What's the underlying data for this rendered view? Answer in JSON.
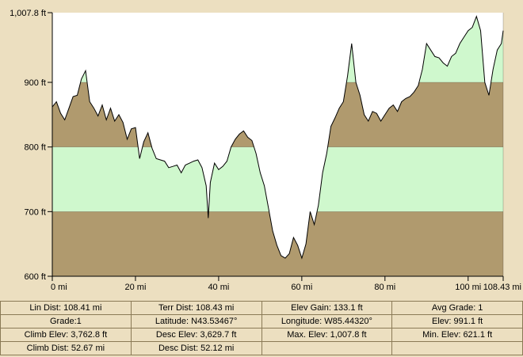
{
  "chart_data": {
    "type": "area",
    "title": "",
    "xlabel": "",
    "ylabel": "",
    "x_ticks": [
      {
        "value": 0,
        "label": "0 mi"
      },
      {
        "value": 20,
        "label": "20 mi"
      },
      {
        "value": 40,
        "label": "40 mi"
      },
      {
        "value": 60,
        "label": "60 mi"
      },
      {
        "value": 80,
        "label": "80 mi"
      },
      {
        "value": 100,
        "label": "100 mi"
      },
      {
        "value": 108.43,
        "label": "108.43 mi"
      }
    ],
    "y_ticks": [
      {
        "value": 600,
        "label": "600 ft"
      },
      {
        "value": 700,
        "label": "700 ft"
      },
      {
        "value": 800,
        "label": "800 ft"
      },
      {
        "value": 900,
        "label": "900 ft"
      },
      {
        "value": 1007.8,
        "label": "1,007.8 ft"
      }
    ],
    "xlim": [
      0,
      108.43
    ],
    "ylim": [
      600,
      1007.8
    ],
    "bands": [
      {
        "from": 600,
        "to": 700,
        "color": "#b09a6e"
      },
      {
        "from": 700,
        "to": 800,
        "color": "#cff8cd"
      },
      {
        "from": 800,
        "to": 900,
        "color": "#b09a6e"
      },
      {
        "from": 900,
        "to": 1007.8,
        "color": "#cff8cd"
      }
    ],
    "sky_color": "#ffffff",
    "line_color": "#000000",
    "series": [
      {
        "x": [
          0,
          1,
          2,
          3,
          4,
          5,
          6,
          7,
          8,
          9,
          10,
          11,
          12,
          13,
          14,
          15,
          16,
          17,
          18,
          19,
          20,
          21,
          22,
          23,
          24,
          25,
          26,
          27,
          28,
          29,
          30,
          31,
          32,
          33,
          34,
          35,
          36,
          37,
          37.5,
          38,
          39,
          40,
          41,
          42,
          43,
          44,
          45,
          46,
          47,
          48,
          49,
          50,
          51,
          52,
          53,
          54,
          55,
          56,
          57,
          58,
          59,
          60,
          61,
          62,
          63,
          64,
          65,
          66,
          67,
          68,
          69,
          70,
          71,
          72,
          73,
          74,
          75,
          76,
          77,
          78,
          79,
          80,
          81,
          82,
          83,
          84,
          85,
          86,
          87,
          88,
          89,
          90,
          91,
          92,
          93,
          94,
          95,
          96,
          97,
          98,
          99,
          100,
          101,
          102,
          103,
          104,
          105,
          106,
          107,
          108,
          108.43
        ],
        "values": [
          862,
          870,
          852,
          842,
          860,
          878,
          880,
          905,
          918,
          870,
          860,
          848,
          865,
          842,
          860,
          840,
          850,
          838,
          812,
          828,
          830,
          782,
          808,
          822,
          798,
          782,
          780,
          778,
          768,
          770,
          772,
          760,
          772,
          775,
          778,
          780,
          768,
          740,
          690,
          745,
          775,
          765,
          770,
          778,
          800,
          812,
          820,
          825,
          815,
          810,
          790,
          760,
          740,
          705,
          670,
          648,
          632,
          628,
          635,
          660,
          648,
          628,
          650,
          700,
          680,
          710,
          760,
          790,
          832,
          845,
          860,
          870,
          910,
          960,
          900,
          880,
          850,
          840,
          855,
          852,
          840,
          850,
          860,
          865,
          855,
          870,
          875,
          878,
          885,
          895,
          920,
          960,
          950,
          940,
          938,
          930,
          925,
          940,
          945,
          960,
          970,
          980,
          985,
          1002,
          980,
          900,
          880,
          920,
          950,
          960,
          980
        ]
      }
    ]
  },
  "stats": {
    "rows": [
      [
        "Lin Dist: 108.41 mi",
        "Terr Dist: 108.43 mi",
        "Elev Gain: 133.1 ft",
        "Avg Grade: 1"
      ],
      [
        "Grade:1",
        "Latitude: N43.53467°",
        "Longitude: W85.44320°",
        "Elev: 991.1 ft"
      ],
      [
        "Climb Elev: 3,762.8 ft",
        "Desc Elev: 3,629.7 ft",
        "Max. Elev: 1,007.8 ft",
        "Min. Elev: 621.1 ft"
      ],
      [
        "Climb Dist: 52.67 mi",
        "Desc Dist: 52.12 mi",
        "",
        ""
      ]
    ]
  }
}
